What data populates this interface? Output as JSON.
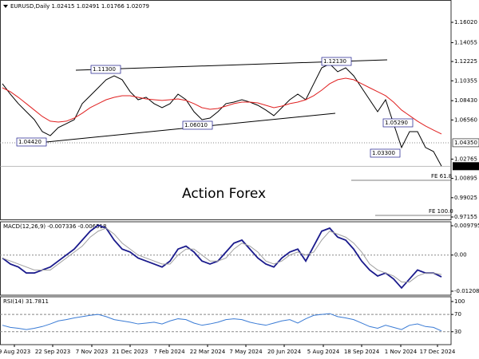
{
  "header": {
    "watermark": "Action Forex"
  },
  "annotations": [
    "1.11300",
    "1.12130",
    "1.06010",
    "1.04420",
    "1.05290",
    "1.03300",
    "FE 61.8",
    "FE 100.0"
  ],
  "chart_data": [
    {
      "type": "line",
      "title": "EURUSD,Daily 1.02415 1.02491 1.01766 1.02079",
      "x": [
        0,
        1,
        2,
        3,
        4,
        5,
        6,
        7,
        8,
        9,
        10,
        11,
        12,
        13,
        14,
        15,
        16,
        17,
        18,
        19,
        20,
        21,
        22,
        23,
        24,
        25,
        26,
        27,
        28,
        29,
        30,
        31,
        32,
        33,
        34,
        35,
        36,
        37,
        38,
        39,
        40,
        41,
        42,
        43,
        44,
        45,
        46,
        47,
        48,
        49,
        50,
        51,
        52,
        53,
        54,
        55
      ],
      "xlim": [
        -0.3,
        56.2
      ],
      "ylim": [
        0.96923,
        1.18185
      ],
      "yticks": [
        {
          "value": 1.1602,
          "label": "1.16020"
        },
        1.14055,
        1.12225,
        1.10355,
        {
          "value": 1.0843,
          "label": "1.08430"
        },
        {
          "value": 1.0656,
          "label": "1.06560"
        },
        1.02765,
        1.00895,
        0.99025,
        0.97155
      ],
      "levels": [
        {
          "value": 1.0435,
          "label": "1.04350"
        }
      ],
      "last_price": {
        "value": 1.02079,
        "label": "1.02079"
      },
      "series": [
        {
          "color": "#000000",
          "values": [
            1.1007,
            1.0906,
            1.0814,
            1.0736,
            1.0659,
            1.0543,
            1.0504,
            1.0582,
            1.062,
            1.0659,
            1.0814,
            1.0891,
            1.0968,
            1.1046,
            1.1084,
            1.1046,
            1.093,
            1.0852,
            1.0876,
            1.0814,
            1.0775,
            1.0814,
            1.0906,
            1.0852,
            1.0736,
            1.0659,
            1.0674,
            1.0736,
            1.0814,
            1.0829,
            1.0852,
            1.0829,
            1.0798,
            1.0752,
            1.0698,
            1.0775,
            1.0852,
            1.0906,
            1.0852,
            1.1007,
            1.1161,
            1.12,
            1.1123,
            1.1161,
            1.1084,
            1.0968,
            1.0852,
            1.0736,
            1.0852,
            1.062,
            1.0389,
            1.0543,
            1.0543,
            1.0389,
            1.035,
            1.0208
          ]
        },
        {
          "color": "#e02020",
          "values": [
            1.0968,
            1.093,
            1.0875,
            1.0814,
            1.0752,
            1.069,
            1.0644,
            1.0636,
            1.0644,
            1.0674,
            1.0721,
            1.0775,
            1.0814,
            1.0852,
            1.0875,
            1.0891,
            1.0891,
            1.0875,
            1.086,
            1.0852,
            1.0845,
            1.0852,
            1.086,
            1.0845,
            1.0814,
            1.0775,
            1.0759,
            1.0767,
            1.079,
            1.0814,
            1.0829,
            1.0829,
            1.0821,
            1.0798,
            1.0775,
            1.079,
            1.0814,
            1.0829,
            1.0852,
            1.0891,
            1.0945,
            1.1007,
            1.1046,
            1.1061,
            1.1046,
            1.1007,
            1.0968,
            1.093,
            1.0891,
            1.0829,
            1.0752,
            1.0698,
            1.0644,
            1.0597,
            1.0558,
            1.052
          ]
        }
      ]
    },
    {
      "type": "line",
      "title": "MACD(12,26,9) -0.007336 -0.006518",
      "x": [
        0,
        1,
        2,
        3,
        4,
        5,
        6,
        7,
        8,
        9,
        10,
        11,
        12,
        13,
        14,
        15,
        16,
        17,
        18,
        19,
        20,
        21,
        22,
        23,
        24,
        25,
        26,
        27,
        28,
        29,
        30,
        31,
        32,
        33,
        34,
        35,
        36,
        37,
        38,
        39,
        40,
        41,
        42,
        43,
        44,
        45,
        46,
        47,
        48,
        49,
        50,
        51,
        52,
        53,
        54,
        55
      ],
      "xlim": [
        -0.3,
        56.2
      ],
      "ylim": [
        -0.013415,
        0.011129
      ],
      "yticks": [
        0.009795,
        {
          "value": 0,
          "label": "0.00"
        },
        -0.012081
      ],
      "series": [
        {
          "color": "#1a1a8c",
          "values": [
            -0.001,
            -0.003,
            -0.004,
            -0.006,
            -0.006,
            -0.005,
            -0.004,
            -0.002,
            0,
            0.002,
            0.005,
            0.008,
            0.01,
            0.009,
            0.005,
            0.002,
            0.001,
            -0.001,
            -0.002,
            -0.003,
            -0.004,
            -0.002,
            0.002,
            0.003,
            0.001,
            -0.002,
            -0.003,
            -0.002,
            0.001,
            0.004,
            0.005,
            0.002,
            -0.001,
            -0.003,
            -0.004,
            -0.001,
            0.001,
            0.002,
            -0.002,
            0.003,
            0.008,
            0.009,
            0.006,
            0.005,
            0.002,
            -0.002,
            -0.005,
            -0.007,
            -0.006,
            -0.008,
            -0.011,
            -0.008,
            -0.005,
            -0.006,
            -0.006,
            -0.0073
          ]
        },
        {
          "color": "#a0a0a0",
          "values": [
            -0.001,
            -0.002,
            -0.003,
            -0.004,
            -0.005,
            -0.005,
            -0.005,
            -0.003,
            -0.001,
            0.001,
            0.003,
            0.006,
            0.008,
            0.009,
            0.007,
            0.004,
            0.002,
            0,
            -0.001,
            -0.002,
            -0.003,
            -0.003,
            0,
            0.002,
            0.002,
            0,
            -0.002,
            -0.002,
            -0.001,
            0.002,
            0.004,
            0.003,
            0.001,
            -0.002,
            -0.003,
            -0.002,
            0,
            0.001,
            0,
            0.001,
            0.005,
            0.008,
            0.007,
            0.006,
            0.004,
            0.001,
            -0.003,
            -0.005,
            -0.006,
            -0.007,
            -0.009,
            -0.009,
            -0.007,
            -0.006,
            -0.006,
            -0.0065
          ]
        }
      ]
    },
    {
      "type": "line",
      "title": "RSI(14) 31.7811",
      "x": [
        0,
        1,
        2,
        3,
        4,
        5,
        6,
        7,
        8,
        9,
        10,
        11,
        12,
        13,
        14,
        15,
        16,
        17,
        18,
        19,
        20,
        21,
        22,
        23,
        24,
        25,
        26,
        27,
        28,
        29,
        30,
        31,
        32,
        33,
        34,
        35,
        36,
        37,
        38,
        39,
        40,
        41,
        42,
        43,
        44,
        45,
        46,
        47,
        48,
        49,
        50,
        51,
        52,
        53,
        54,
        55
      ],
      "xlim": [
        -0.3,
        56.2
      ],
      "ylim": [
        0,
        111
      ],
      "yticks": [
        100,
        70,
        30
      ],
      "levels": [
        70,
        30
      ],
      "xticks": [
        {
          "value": 1.5,
          "label": "9 Aug 2023"
        },
        {
          "value": 6.3,
          "label": "22 Sep 2023"
        },
        {
          "value": 11.2,
          "label": "7 Nov 2023"
        },
        {
          "value": 16,
          "label": "21 Dec 2023"
        },
        {
          "value": 20.9,
          "label": "7 Feb 2024"
        },
        {
          "value": 25.7,
          "label": "22 Mar 2024"
        },
        {
          "value": 30.5,
          "label": "7 May 2024"
        },
        {
          "value": 35.3,
          "label": "20 Jun 2024"
        },
        {
          "value": 40.2,
          "label": "5 Aug 2024"
        },
        {
          "value": 45,
          "label": "18 Sep 2024"
        },
        {
          "value": 49.9,
          "label": "1 Nov 2024"
        },
        {
          "value": 54.5,
          "label": "17 Dec 2024"
        }
      ],
      "series": [
        {
          "color": "#3a7bd5",
          "values": [
            45,
            40,
            38,
            35,
            38,
            42,
            48,
            55,
            58,
            62,
            65,
            68,
            70,
            65,
            58,
            55,
            52,
            48,
            50,
            52,
            48,
            55,
            60,
            58,
            50,
            45,
            48,
            52,
            58,
            60,
            58,
            52,
            48,
            45,
            50,
            55,
            58,
            50,
            60,
            68,
            70,
            72,
            65,
            62,
            58,
            50,
            42,
            38,
            45,
            40,
            35,
            45,
            48,
            42,
            40,
            31.8
          ]
        }
      ]
    }
  ]
}
